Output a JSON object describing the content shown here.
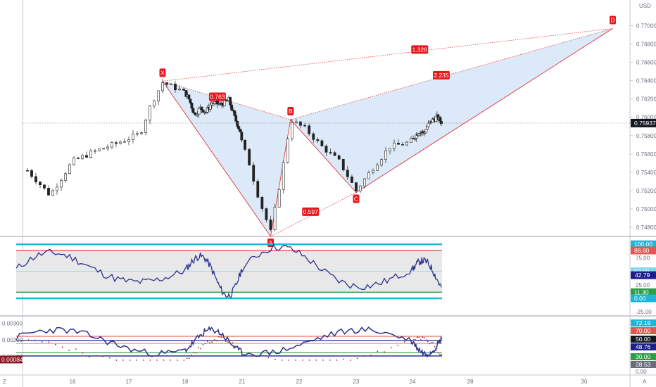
{
  "chart_data": [
    {
      "type": "candlestick",
      "currency": "USD",
      "ylim": [
        0.747,
        0.7725
      ],
      "y_ticks": [
        "0.77000",
        "0.76800",
        "0.76600",
        "0.76400",
        "0.76200",
        "0.76000",
        "0.75800",
        "0.75600",
        "0.75400",
        "0.75200",
        "0.75000",
        "0.74800"
      ],
      "last_price": "0.75937",
      "harmonic_pattern": {
        "points": [
          {
            "label": "X",
            "x": 17.6,
            "y": 0.76395
          },
          {
            "label": "A",
            "x": 21.5,
            "y": 0.747
          },
          {
            "label": "B",
            "x": 21.85,
            "y": 0.75975
          },
          {
            "label": "C",
            "x": 23.0,
            "y": 0.7518
          },
          {
            "label": "D",
            "x": 30.5,
            "y": 0.7697
          }
        ],
        "ratios": [
          {
            "label": "0.763",
            "x": 19.7,
            "y": 0.76225
          },
          {
            "label": "1.326",
            "x": 24.5,
            "y": 0.7674
          },
          {
            "label": "2.235",
            "x": 26.0,
            "y": 0.7646
          },
          {
            "label": "0.597",
            "x": 22.2,
            "y": 0.7497
          }
        ]
      }
    },
    {
      "type": "line",
      "indicator": "oscillator",
      "ylim": [
        -30,
        112
      ],
      "y_ticks": [
        "75.00",
        "25.00",
        "-25.00"
      ],
      "levels": [
        {
          "label": "100.00",
          "value": 100,
          "color": "#1fb5d6"
        },
        {
          "label": "88.60",
          "value": 88.6,
          "color": "#e2584f"
        },
        {
          "label": "50.00",
          "value": 50,
          "color": "#7fd7ea"
        },
        {
          "label": "11.30",
          "value": 11.3,
          "color": "#2e9e45"
        },
        {
          "label": "0.00",
          "value": 0,
          "color": "#1fb5d6"
        }
      ],
      "current": {
        "label": "42.79",
        "value": 42.79
      }
    },
    {
      "type": "line",
      "indicator": "volatility",
      "ylim": [
        0,
        0.00335
      ],
      "y_ticks": [
        "0.00300",
        "0.00200",
        "0.00100"
      ],
      "last_value": "0.00084",
      "right_ticks": [
        "72.19",
        "70.00",
        "50.00",
        "48.76",
        "30.00",
        "28.53",
        "0.00"
      ],
      "x_ticks": [
        "16",
        "17",
        "18",
        "21",
        "22",
        "23",
        "24",
        "28",
        "30"
      ],
      "corner_labels": [
        "Z",
        "A"
      ]
    }
  ]
}
